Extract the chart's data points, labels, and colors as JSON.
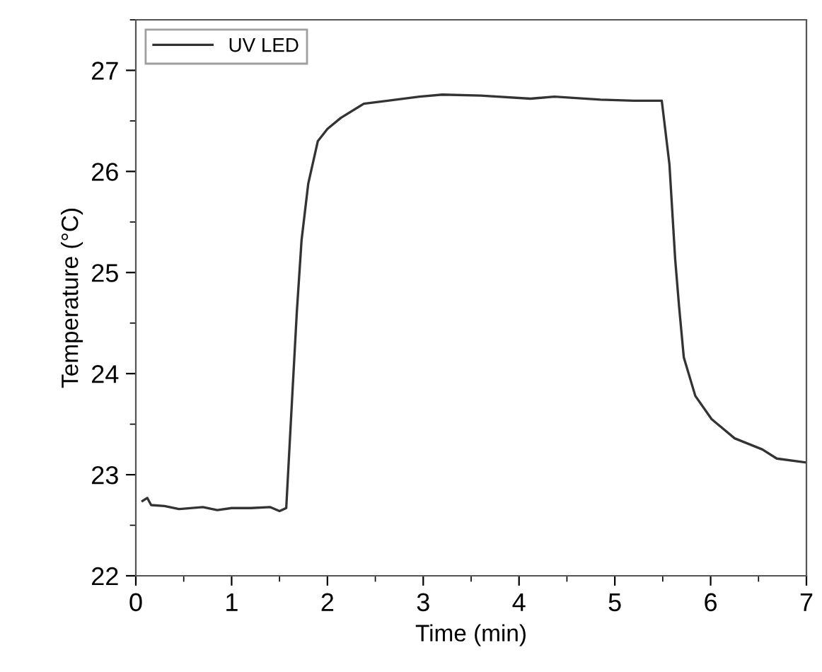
{
  "chart_data": {
    "type": "line",
    "xlabel": "Time (min)",
    "ylabel": "Temperature (°C)",
    "xlim": [
      0,
      7
    ],
    "ylim": [
      22,
      27.5
    ],
    "xticks": [
      0,
      1,
      2,
      3,
      4,
      5,
      6,
      7
    ],
    "yticks": [
      22,
      23,
      24,
      25,
      26,
      27
    ],
    "grid": false,
    "legend": "top left",
    "line_style": "solid",
    "marker": "none",
    "series": [
      {
        "name": "UV LED",
        "color": "#333333",
        "x": [
          0.07,
          0.12,
          0.16,
          0.3,
          0.45,
          0.7,
          0.85,
          1.0,
          1.2,
          1.4,
          1.5,
          1.57,
          1.63,
          1.68,
          1.73,
          1.8,
          1.9,
          2.0,
          2.14,
          2.38,
          2.63,
          2.96,
          3.2,
          3.6,
          4.12,
          4.37,
          4.85,
          5.2,
          5.49,
          5.57,
          5.63,
          5.67,
          5.72,
          5.84,
          6.01,
          6.25,
          6.54,
          6.69,
          7.0
        ],
        "values": [
          22.74,
          22.77,
          22.7,
          22.69,
          22.66,
          22.68,
          22.65,
          22.67,
          22.67,
          22.68,
          22.64,
          22.67,
          23.73,
          24.6,
          25.32,
          25.88,
          26.3,
          26.42,
          26.53,
          26.67,
          26.7,
          26.74,
          26.76,
          26.75,
          26.72,
          26.74,
          26.71,
          26.7,
          26.7,
          26.07,
          25.13,
          24.67,
          24.16,
          23.78,
          23.55,
          23.36,
          23.25,
          23.16,
          23.12
        ]
      }
    ]
  }
}
